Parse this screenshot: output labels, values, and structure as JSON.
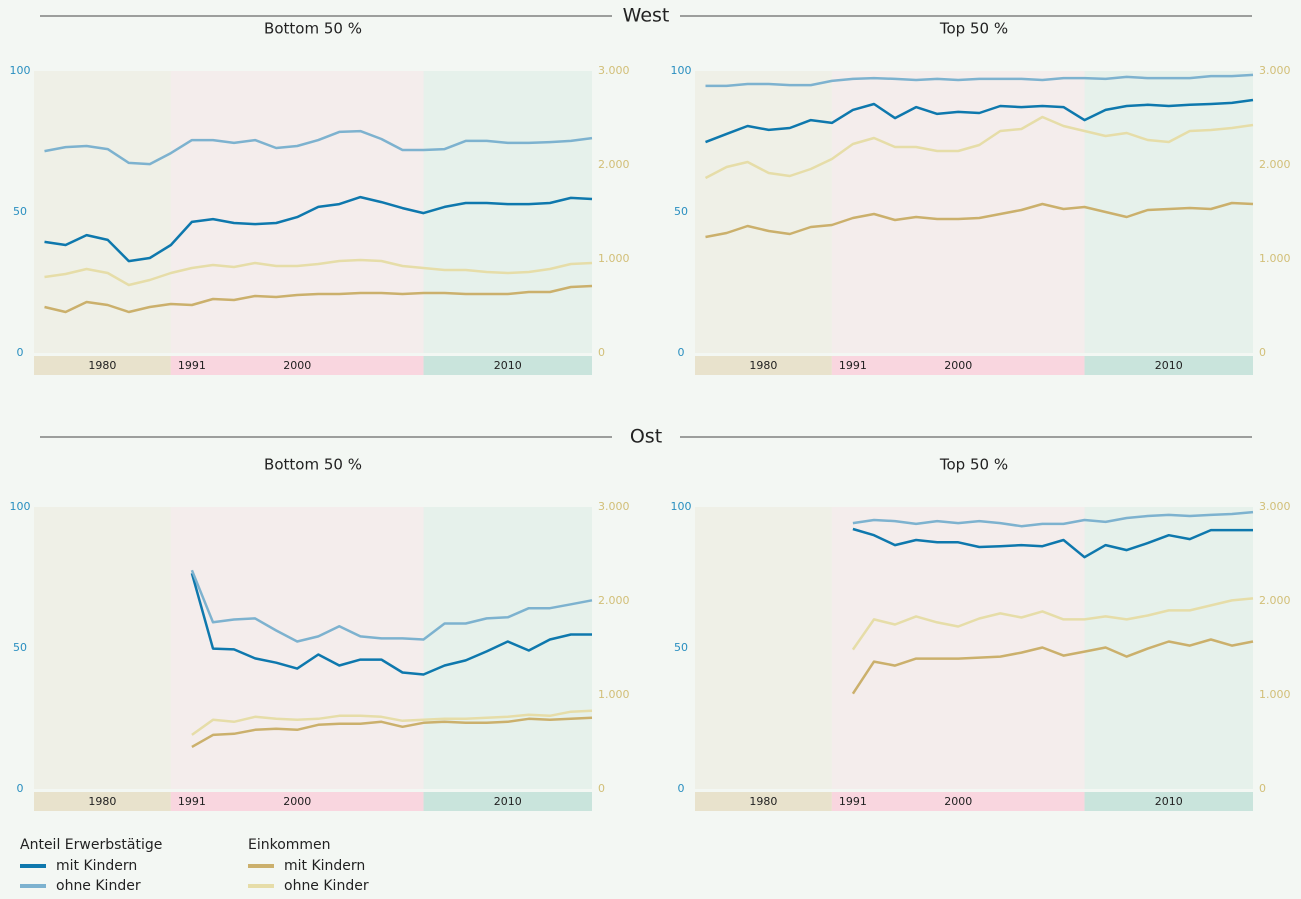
{
  "sections": [
    {
      "title": "West"
    },
    {
      "title": "Ost"
    }
  ],
  "legend_titles": [
    "Anteil Erwerbstätige",
    "Einkommen"
  ],
  "chart_data": [
    {
      "type": "line",
      "title": "Bottom 50 %",
      "x": [
        1984,
        1985,
        1986,
        1987,
        1988,
        1989,
        1990,
        1991,
        1992,
        1993,
        1994,
        1995,
        1996,
        1997,
        1998,
        1999,
        2000,
        2001,
        2002,
        2003,
        2004,
        2005,
        2006,
        2007,
        2008,
        2009,
        2010
      ],
      "xlim": [
        1983.5,
        2010
      ],
      "xticks": [
        1991
      ],
      "bands": [
        {
          "from": 1983.5,
          "to": 1990,
          "label": "1980",
          "color": "#e8e2cc"
        },
        {
          "from": 1990,
          "to": 2002,
          "label": "2000",
          "color": "#f9d6df"
        },
        {
          "from": 2002,
          "to": 2010,
          "label": "2010",
          "color": "#c9e4dc"
        }
      ],
      "ylim": [
        0,
        100
      ],
      "yticks": [
        0,
        50,
        100
      ],
      "y2lim": [
        0,
        3000
      ],
      "y2ticks": [
        0,
        {
          "value": 1000,
          "label": "1.000"
        },
        {
          "value": 2000,
          "label": "2.000"
        },
        {
          "value": 3000,
          "label": "3.000"
        }
      ],
      "series": [
        {
          "name": "mit Kindern",
          "color": "#0e78ad",
          "values": [
            39.4,
            38.3,
            41.8,
            40.1,
            32.6,
            33.7,
            38.3,
            46.5,
            47.5,
            46.1,
            45.7,
            46.1,
            48.2,
            51.8,
            52.8,
            55.3,
            53.5,
            51.4,
            49.6,
            51.8,
            53.2,
            53.2,
            52.8,
            52.8,
            53.2,
            55.0,
            54.6
          ]
        },
        {
          "name": "ohne Kinder",
          "color": "#7db2cf",
          "values": [
            71.6,
            73.0,
            73.4,
            72.3,
            67.4,
            67.0,
            70.9,
            75.5,
            75.5,
            74.5,
            75.5,
            72.7,
            73.4,
            75.5,
            78.4,
            78.7,
            75.9,
            72.0,
            72.0,
            72.3,
            75.2,
            75.2,
            74.5,
            74.5,
            74.8,
            75.2,
            76.2
          ]
        },
        {
          "name": "mit Kindern",
          "color": "#cbb06c",
          "axis": "y2",
          "values": [
            489,
            436,
            543,
            511,
            436,
            489,
            521,
            511,
            574,
            564,
            606,
            596,
            617,
            628,
            628,
            638,
            638,
            628,
            638,
            638,
            628,
            628,
            628,
            649,
            649,
            702,
            713
          ]
        },
        {
          "name": "ohne Kinder",
          "color": "#e6dda8",
          "axis": "y2",
          "values": [
            809,
            840,
            894,
            851,
            723,
            777,
            851,
            904,
            936,
            915,
            957,
            926,
            926,
            947,
            979,
            989,
            979,
            926,
            904,
            883,
            883,
            862,
            851,
            862,
            894,
            947,
            957
          ]
        }
      ]
    },
    {
      "type": "line",
      "title": "Top 50 %",
      "x": [
        1984,
        1985,
        1986,
        1987,
        1988,
        1989,
        1990,
        1991,
        1992,
        1993,
        1994,
        1995,
        1996,
        1997,
        1998,
        1999,
        2000,
        2001,
        2002,
        2003,
        2004,
        2005,
        2006,
        2007,
        2008,
        2009,
        2010
      ],
      "xlim": [
        1983.5,
        2010
      ],
      "xticks": [
        1991
      ],
      "bands": [
        {
          "from": 1983.5,
          "to": 1990,
          "label": "1980",
          "color": "#e8e2cc"
        },
        {
          "from": 1990,
          "to": 2002,
          "label": "2000",
          "color": "#f9d6df"
        },
        {
          "from": 2002,
          "to": 2010,
          "label": "2010",
          "color": "#c9e4dc"
        }
      ],
      "ylim": [
        0,
        100
      ],
      "yticks": [
        0,
        50,
        100
      ],
      "y2lim": [
        0,
        3000
      ],
      "y2ticks": [
        0,
        {
          "value": 1000,
          "label": "1.000"
        },
        {
          "value": 2000,
          "label": "2.000"
        },
        {
          "value": 3000,
          "label": "3.000"
        }
      ],
      "series": [
        {
          "name": "mit Kindern",
          "color": "#0e78ad",
          "values": [
            74.8,
            77.7,
            80.5,
            79.1,
            79.8,
            82.6,
            81.6,
            86.2,
            88.3,
            83.3,
            87.2,
            84.8,
            85.5,
            85.1,
            87.6,
            87.2,
            87.6,
            87.2,
            82.6,
            86.2,
            87.6,
            88.0,
            87.6,
            88.0,
            88.3,
            88.7,
            89.7
          ]
        },
        {
          "name": "ohne Kinder",
          "color": "#7db2cf",
          "values": [
            94.7,
            94.7,
            95.4,
            95.4,
            95.0,
            95.0,
            96.5,
            97.2,
            97.5,
            97.2,
            96.8,
            97.2,
            96.8,
            97.2,
            97.2,
            97.2,
            96.8,
            97.5,
            97.5,
            97.2,
            97.9,
            97.5,
            97.5,
            97.5,
            98.2,
            98.2,
            98.6
          ]
        },
        {
          "name": "mit Kindern",
          "color": "#cbb06c",
          "axis": "y2",
          "values": [
            1234,
            1277,
            1351,
            1298,
            1266,
            1340,
            1362,
            1436,
            1479,
            1415,
            1447,
            1426,
            1426,
            1436,
            1479,
            1521,
            1585,
            1532,
            1553,
            1500,
            1447,
            1521,
            1532,
            1543,
            1532,
            1596,
            1585
          ]
        },
        {
          "name": "ohne Kinder",
          "color": "#e6dda8",
          "axis": "y2",
          "values": [
            1862,
            1979,
            2032,
            1915,
            1883,
            1957,
            2064,
            2223,
            2287,
            2191,
            2191,
            2149,
            2149,
            2213,
            2362,
            2383,
            2511,
            2415,
            2362,
            2309,
            2340,
            2266,
            2245,
            2362,
            2372,
            2394,
            2426
          ]
        }
      ]
    },
    {
      "type": "line",
      "title": "Bottom 50 %",
      "x": [
        1984,
        1985,
        1986,
        1987,
        1988,
        1989,
        1990,
        1991,
        1992,
        1993,
        1994,
        1995,
        1996,
        1997,
        1998,
        1999,
        2000,
        2001,
        2002,
        2003,
        2004,
        2005,
        2006,
        2007,
        2008,
        2009,
        2010
      ],
      "xlim": [
        1983.5,
        2010
      ],
      "xticks": [
        1991
      ],
      "bands": [
        {
          "from": 1983.5,
          "to": 1990,
          "label": "1980",
          "color": "#e8e2cc"
        },
        {
          "from": 1990,
          "to": 2002,
          "label": "2000",
          "color": "#f9d6df"
        },
        {
          "from": 2002,
          "to": 2010,
          "label": "2010",
          "color": "#c9e4dc"
        }
      ],
      "ylim": [
        0,
        100
      ],
      "yticks": [
        0,
        50,
        100
      ],
      "y2lim": [
        0,
        3000
      ],
      "y2ticks": [
        0,
        {
          "value": 1000,
          "label": "1.000"
        },
        {
          "value": 2000,
          "label": "2.000"
        },
        {
          "value": 3000,
          "label": "3.000"
        }
      ],
      "series": [
        {
          "name": "mit Kindern",
          "color": "#0e78ad",
          "values": [
            null,
            null,
            null,
            null,
            null,
            null,
            null,
            76.5,
            49.8,
            49.5,
            46.3,
            44.8,
            42.7,
            47.7,
            43.8,
            45.9,
            45.9,
            41.3,
            40.6,
            43.8,
            45.6,
            48.8,
            52.3,
            49.1,
            53.0,
            54.8,
            54.8
          ]
        },
        {
          "name": "ohne Kinder",
          "color": "#7db2cf",
          "values": [
            null,
            null,
            null,
            null,
            null,
            null,
            null,
            77.6,
            59.1,
            60.1,
            60.5,
            56.2,
            52.3,
            54.1,
            57.7,
            54.1,
            53.4,
            53.4,
            53.0,
            58.7,
            58.7,
            60.5,
            60.9,
            64.1,
            64.1,
            65.5,
            66.9
          ]
        },
        {
          "name": "mit Kindern",
          "color": "#cbb06c",
          "axis": "y2",
          "values": [
            null,
            null,
            null,
            null,
            null,
            null,
            null,
            448,
            576,
            587,
            630,
            640,
            630,
            683,
            694,
            694,
            715,
            662,
            704,
            715,
            704,
            704,
            715,
            747,
            737,
            747,
            758
          ]
        },
        {
          "name": "ohne Kinder",
          "color": "#e6dda8",
          "axis": "y2",
          "values": [
            null,
            null,
            null,
            null,
            null,
            null,
            null,
            576,
            736,
            715,
            768,
            747,
            736,
            747,
            779,
            779,
            768,
            726,
            736,
            747,
            747,
            758,
            768,
            790,
            779,
            822,
            832
          ]
        }
      ]
    },
    {
      "type": "line",
      "title": "Top 50 %",
      "x": [
        1984,
        1985,
        1986,
        1987,
        1988,
        1989,
        1990,
        1991,
        1992,
        1993,
        1994,
        1995,
        1996,
        1997,
        1998,
        1999,
        2000,
        2001,
        2002,
        2003,
        2004,
        2005,
        2006,
        2007,
        2008,
        2009,
        2010
      ],
      "xlim": [
        1983.5,
        2010
      ],
      "xticks": [
        1991
      ],
      "bands": [
        {
          "from": 1983.5,
          "to": 1990,
          "label": "1980",
          "color": "#e8e2cc"
        },
        {
          "from": 1990,
          "to": 2002,
          "label": "2000",
          "color": "#f9d6df"
        },
        {
          "from": 2002,
          "to": 2010,
          "label": "2010",
          "color": "#c9e4dc"
        }
      ],
      "ylim": [
        0,
        100
      ],
      "yticks": [
        0,
        50,
        100
      ],
      "y2lim": [
        0,
        3000
      ],
      "y2ticks": [
        0,
        {
          "value": 1000,
          "label": "1.000"
        },
        {
          "value": 2000,
          "label": "2.000"
        },
        {
          "value": 3000,
          "label": "3.000"
        }
      ],
      "series": [
        {
          "name": "mit Kindern",
          "color": "#0e78ad",
          "values": [
            null,
            null,
            null,
            null,
            null,
            null,
            null,
            92.2,
            90.0,
            86.5,
            88.3,
            87.5,
            87.5,
            85.8,
            86.1,
            86.5,
            86.1,
            88.3,
            82.2,
            86.5,
            84.7,
            87.2,
            90.0,
            88.6,
            91.8,
            91.8,
            91.8
          ]
        },
        {
          "name": "ohne Kinder",
          "color": "#7db2cf",
          "values": [
            null,
            null,
            null,
            null,
            null,
            null,
            null,
            94.3,
            95.4,
            95.0,
            94.0,
            95.0,
            94.3,
            95.0,
            94.3,
            93.2,
            94.0,
            94.0,
            95.4,
            94.7,
            96.1,
            96.8,
            97.2,
            96.8,
            97.2,
            97.5,
            98.2
          ]
        },
        {
          "name": "mit Kindern",
          "color": "#cbb06c",
          "axis": "y2",
          "values": [
            null,
            null,
            null,
            null,
            null,
            null,
            null,
            1014,
            1355,
            1313,
            1387,
            1387,
            1387,
            1398,
            1409,
            1451,
            1505,
            1419,
            1462,
            1505,
            1409,
            1494,
            1569,
            1526,
            1590,
            1526,
            1569
          ]
        },
        {
          "name": "ohne Kinder",
          "color": "#e6dda8",
          "axis": "y2",
          "values": [
            null,
            null,
            null,
            null,
            null,
            null,
            null,
            1483,
            1804,
            1750,
            1836,
            1772,
            1729,
            1814,
            1868,
            1825,
            1889,
            1804,
            1804,
            1836,
            1804,
            1846,
            1900,
            1900,
            1953,
            2006,
            2028
          ]
        }
      ]
    }
  ]
}
